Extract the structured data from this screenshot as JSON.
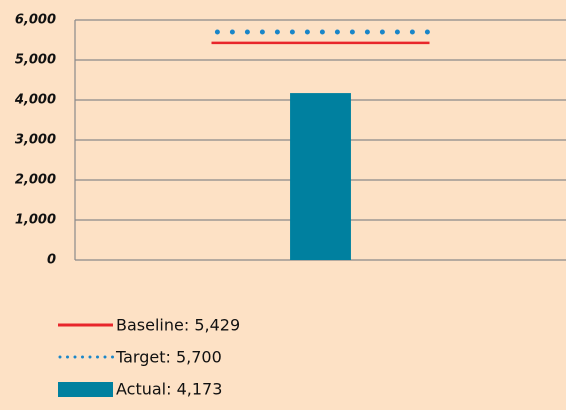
{
  "chart_data": {
    "type": "bar",
    "categories": [
      null
    ],
    "series": [
      {
        "name": "Baseline: 5,429",
        "color": "#e8262b",
        "style": "solid-line",
        "values": [
          5429
        ]
      },
      {
        "name": "Target: 5,700",
        "color": "#1b86c8",
        "style": "dotted-line",
        "values": [
          5700
        ]
      },
      {
        "name": "Actual: 4,173",
        "color": "#00809f",
        "style": "bar",
        "values": [
          4173
        ]
      }
    ],
    "ylim": [
      0,
      6000
    ],
    "yticks": [
      0,
      {
        "value": 1000,
        "label": "1,000"
      },
      {
        "value": 2000,
        "label": "2,000"
      },
      {
        "value": 3000,
        "label": "3,000"
      },
      {
        "value": 4000,
        "label": "4,000"
      },
      {
        "value": 5000,
        "label": "5,000"
      },
      {
        "value": 6000,
        "label": "6,000"
      }
    ],
    "grid": true
  }
}
